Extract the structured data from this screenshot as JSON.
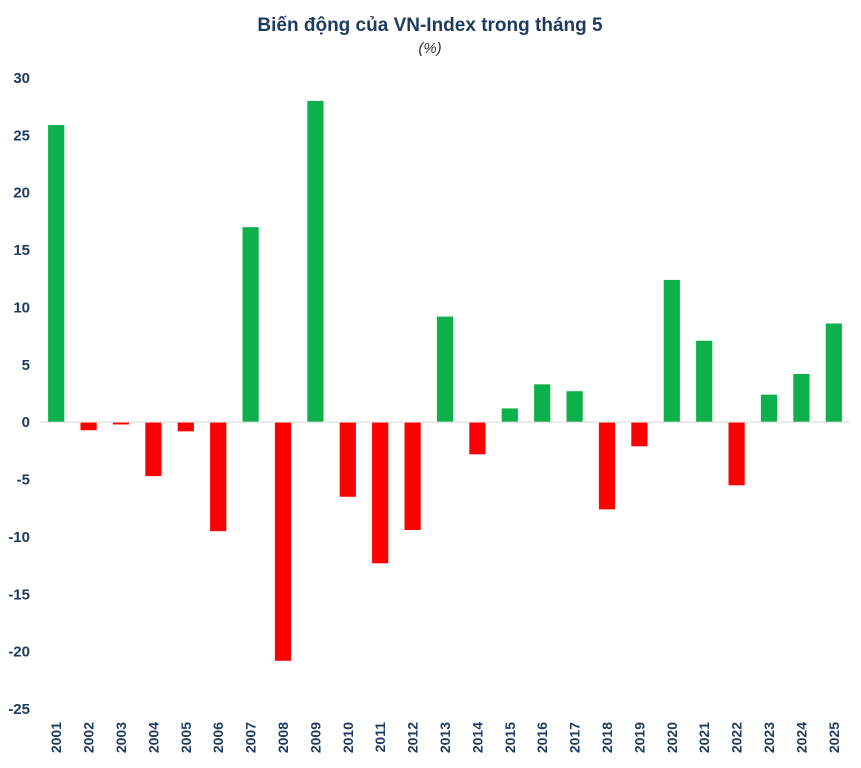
{
  "chart_data": {
    "type": "bar",
    "title": "Biến động của VN-Index trong tháng 5",
    "subtitle": "(%)",
    "xlabel": "",
    "ylabel": "",
    "ylim": [
      -25,
      30
    ],
    "yticks": [
      30,
      25,
      20,
      15,
      10,
      5,
      0,
      -5,
      -10,
      -15,
      -20,
      -25
    ],
    "grid": false,
    "categories": [
      "2001",
      "2002",
      "2003",
      "2004",
      "2005",
      "2006",
      "2007",
      "2008",
      "2009",
      "2010",
      "2011",
      "2012",
      "2013",
      "2014",
      "2015",
      "2016",
      "2017",
      "2018",
      "2019",
      "2020",
      "2021",
      "2022",
      "2023",
      "2024",
      "2025"
    ],
    "values": [
      25.9,
      -0.7,
      -0.2,
      -4.7,
      -0.8,
      -9.5,
      17.0,
      -20.8,
      28.0,
      -6.5,
      -12.3,
      -9.4,
      9.2,
      -2.8,
      1.2,
      3.3,
      2.7,
      -7.6,
      -2.1,
      12.4,
      7.1,
      -5.5,
      2.4,
      4.2,
      8.6
    ],
    "colors": {
      "positive": "#0db14b",
      "negative": "#ff0000"
    }
  }
}
